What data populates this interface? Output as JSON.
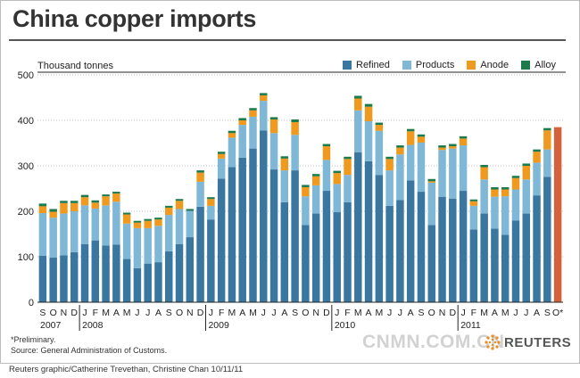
{
  "title": "China copper imports",
  "unit_label": "Thousand tonnes",
  "footnote": "*Preliminary.",
  "source": "Source: General Administration of Customs.",
  "credit": "Reuters graphic/Catherine Trevethan, Christine Chan   10/11/11",
  "watermark": "CNMN.COM.CN",
  "brand": "REUTERS",
  "colors": {
    "refined": "#3a77a0",
    "products": "#7fb7d6",
    "anode": "#ef9a1e",
    "alloy": "#1d7a4b",
    "preliminary": "#d4623a"
  },
  "chart_data": {
    "type": "bar",
    "stacked": true,
    "ylim": [
      0,
      500
    ],
    "yticks": [
      0,
      100,
      200,
      300,
      400,
      500
    ],
    "grid": true,
    "legend_position": "top-right",
    "categories": [
      "S",
      "O",
      "N",
      "D",
      "J",
      "F",
      "M",
      "A",
      "M",
      "J",
      "J",
      "A",
      "S",
      "O",
      "N",
      "D",
      "J",
      "F",
      "M",
      "A",
      "M",
      "J",
      "J",
      "A",
      "S",
      "O",
      "N",
      "D",
      "J",
      "F",
      "M",
      "A",
      "M",
      "J",
      "J",
      "A",
      "S",
      "O",
      "N",
      "D",
      "J",
      "F",
      "M",
      "A",
      "M",
      "J",
      "J",
      "A",
      "S",
      "O*"
    ],
    "years": [
      {
        "label": "2007",
        "start": 0
      },
      {
        "label": "2008",
        "start": 4
      },
      {
        "label": "2009",
        "start": 16
      },
      {
        "label": "2010",
        "start": 28
      },
      {
        "label": "2011",
        "start": 40
      }
    ],
    "series": [
      {
        "name": "Refined",
        "key": "refined",
        "values": [
          102,
          98,
          103,
          110,
          128,
          136,
          125,
          127,
          95,
          75,
          85,
          88,
          112,
          128,
          143,
          210,
          182,
          272,
          297,
          318,
          338,
          378,
          292,
          220,
          290,
          170,
          195,
          245,
          198,
          220,
          330,
          310,
          280,
          212,
          225,
          268,
          243,
          170,
          232,
          228,
          245,
          160,
          195,
          162,
          148,
          180,
          195,
          235,
          276,
          null
        ]
      },
      {
        "label_note": "",
        "name": "Products",
        "key": "products",
        "values": [
          94,
          88,
          92,
          90,
          85,
          70,
          88,
          94,
          78,
          88,
          78,
          80,
          80,
          77,
          58,
          55,
          30,
          44,
          65,
          72,
          70,
          65,
          80,
          70,
          78,
          63,
          62,
          68,
          62,
          60,
          92,
          88,
          97,
          78,
          100,
          78,
          108,
          93,
          103,
          110,
          100,
          52,
          75,
          70,
          85,
          68,
          75,
          72,
          60,
          null
        ]
      },
      {
        "name": "Anode",
        "key": "anode",
        "values": [
          15,
          13,
          23,
          18,
          18,
          13,
          20,
          18,
          20,
          12,
          16,
          14,
          16,
          18,
          0,
          20,
          15,
          10,
          10,
          10,
          14,
          12,
          30,
          26,
          28,
          20,
          20,
          30,
          24,
          35,
          26,
          32,
          13,
          25,
          15,
          30,
          13,
          3,
          5,
          5,
          15,
          10,
          27,
          16,
          15,
          25,
          30,
          24,
          42,
          null
        ]
      },
      {
        "name": "Alloy",
        "key": "alloy",
        "values": [
          6,
          6,
          5,
          5,
          5,
          5,
          4,
          4,
          4,
          4,
          4,
          4,
          4,
          4,
          4,
          5,
          4,
          5,
          5,
          5,
          5,
          5,
          5,
          5,
          6,
          5,
          5,
          5,
          5,
          5,
          6,
          6,
          5,
          5,
          5,
          5,
          5,
          5,
          5,
          5,
          5,
          4,
          5,
          5,
          5,
          5,
          5,
          5,
          5,
          null
        ]
      }
    ],
    "preliminary": {
      "category_index": 49,
      "value": 385
    }
  }
}
